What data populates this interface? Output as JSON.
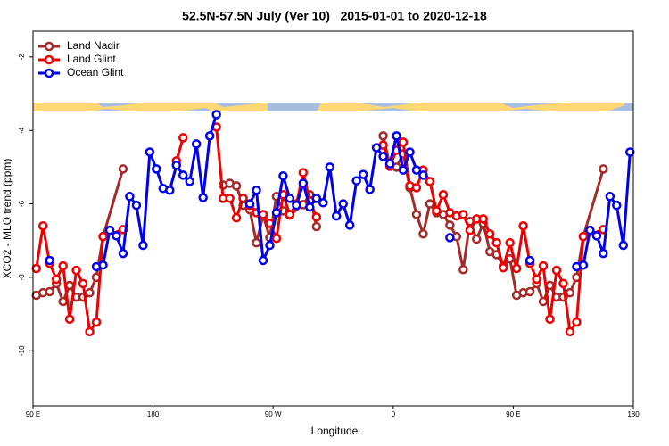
{
  "chart_data": {
    "type": "line",
    "title": "52.5N-57.5N July (Ver 10)   2015-01-01 to 2020-12-18",
    "x_label": "Longitude",
    "y_label": "XCO2 - MLO trend (ppm)",
    "xlim": [
      90,
      540
    ],
    "ylim": [
      -11.5,
      -1.3
    ],
    "xticks": [
      {
        "value": 90,
        "label": "90 E"
      },
      180,
      {
        "value": 270,
        "label": "90 W"
      },
      {
        "value": 360,
        "label": "0"
      },
      {
        "value": 450,
        "label": "90 E"
      },
      {
        "value": 540,
        "label": "180"
      }
    ],
    "yticks": [
      -2,
      -4,
      -6,
      -8,
      -10
    ],
    "legend": "upper left",
    "series": [
      {
        "name": "Land Nadir",
        "color": "#a52a2a",
        "x": [
          92.5,
          97.5,
          102.5,
          107.5,
          112.5,
          117.5,
          122.5,
          127.5,
          132.5,
          137.5,
          142.5,
          157.5,
          192.5,
          232.5,
          237.5,
          242.5,
          247.5,
          252.5,
          257.5,
          262.5,
          267.5,
          272.5,
          277.5,
          282.5,
          292.5,
          297.5,
          302.5,
          307.5,
          352.5,
          357.5,
          362.5,
          367.5,
          372.5,
          377.5,
          382.5,
          387.5,
          392.5,
          397.5,
          402.5,
          407.5,
          412.5,
          417.5,
          422.5,
          427.5,
          432.5,
          437.5,
          442.5,
          447.5,
          452.5,
          457.5,
          462.5,
          467.5,
          472.5,
          477.5,
          482.5,
          487.5,
          492.5,
          497.5,
          502.5,
          517.5
        ],
        "values": [
          -8.49,
          -8.42,
          -8.39,
          -8.17,
          -8.66,
          -8.22,
          -8.54,
          -8.54,
          -8.42,
          -8.0,
          -6.89,
          -5.05,
          null,
          -5.49,
          -5.44,
          -5.51,
          -6.04,
          -6.16,
          -7.06,
          -6.31,
          -6.92,
          -5.8,
          -6.19,
          -6.31,
          -6.02,
          -5.75,
          -6.62,
          null,
          -4.15,
          -4.95,
          -5.0,
          -4.64,
          -5.56,
          -6.29,
          -6.82,
          -6.0,
          -6.24,
          -6.29,
          -6.58,
          -6.89,
          -7.79,
          -6.48,
          -6.96,
          -6.53,
          -7.3,
          -7.38,
          -7.69,
          -7.5,
          -8.49,
          -8.42,
          -8.39,
          -8.17,
          -8.66,
          -8.22,
          -8.54,
          -8.54,
          -8.42,
          -8.0,
          -6.89,
          -5.05
        ]
      },
      {
        "name": "Land Glint",
        "color": "#ee0000",
        "x": [
          92.5,
          97.5,
          102.5,
          107.5,
          112.5,
          117.5,
          122.5,
          127.5,
          132.5,
          137.5,
          142.5,
          157.5,
          177.5,
          197.5,
          202.5,
          212.5,
          227.5,
          232.5,
          237.5,
          242.5,
          247.5,
          252.5,
          257.5,
          262.5,
          267.5,
          272.5,
          277.5,
          282.5,
          287.5,
          292.5,
          297.5,
          302.5,
          327.5,
          352.5,
          357.5,
          362.5,
          367.5,
          372.5,
          377.5,
          382.5,
          387.5,
          392.5,
          397.5,
          402.5,
          407.5,
          412.5,
          417.5,
          422.5,
          427.5,
          432.5,
          437.5,
          442.5,
          447.5,
          452.5,
          457.5,
          462.5,
          467.5,
          472.5,
          477.5,
          482.5,
          487.5,
          492.5,
          497.5,
          502.5,
          517.5
        ],
        "values": [
          -7.76,
          -6.6,
          -7.62,
          -8.05,
          -7.69,
          -9.14,
          -7.81,
          -8.17,
          -9.48,
          -9.22,
          -6.89,
          -6.7,
          null,
          -4.83,
          -4.2,
          null,
          -3.91,
          -5.85,
          -5.85,
          -6.38,
          -5.85,
          -6.04,
          -6.24,
          -6.29,
          -6.53,
          -6.94,
          -5.75,
          -6.29,
          -6.0,
          -5.15,
          -5.92,
          -6.36,
          null,
          -4.4,
          -4.98,
          -4.54,
          -4.32,
          -5.51,
          -5.56,
          -5.08,
          -5.39,
          -6.19,
          -5.75,
          -6.24,
          -6.33,
          -6.29,
          -6.72,
          -6.41,
          -6.41,
          -6.82,
          -7.06,
          -7.74,
          -7.06,
          -7.76,
          -6.6,
          -7.62,
          -8.05,
          -7.69,
          -9.14,
          -7.81,
          -8.17,
          -9.48,
          -9.22,
          -6.89,
          -6.7
        ]
      },
      {
        "name": "Ocean Glint",
        "color": "#0000ee",
        "x": [
          102.5,
          117.5,
          137.5,
          142.5,
          147.5,
          152.5,
          157.5,
          162.5,
          167.5,
          172.5,
          177.5,
          182.5,
          187.5,
          192.5,
          197.5,
          202.5,
          207.5,
          212.5,
          217.5,
          222.5,
          227.5,
          237.5,
          252.5,
          257.5,
          262.5,
          267.5,
          272.5,
          277.5,
          282.5,
          287.5,
          292.5,
          297.5,
          302.5,
          307.5,
          312.5,
          317.5,
          322.5,
          327.5,
          332.5,
          337.5,
          342.5,
          347.5,
          352.5,
          357.5,
          362.5,
          367.5,
          372.5,
          377.5,
          382.5,
          392.5,
          402.5,
          422.5,
          462.5,
          477.5,
          497.5,
          502.5,
          507.5,
          512.5,
          517.5,
          522.5,
          527.5,
          532.5,
          537.5
        ],
        "values": [
          -7.54,
          null,
          -7.71,
          -7.67,
          -6.72,
          -6.87,
          -7.35,
          -5.8,
          -6.04,
          -7.13,
          -4.59,
          -5.05,
          -5.58,
          -5.63,
          -4.95,
          -5.22,
          -5.39,
          -4.37,
          -5.83,
          -4.15,
          -3.57,
          null,
          -6.0,
          -5.63,
          -7.54,
          -7.13,
          -6.24,
          -5.24,
          -5.85,
          -6.04,
          -5.44,
          -6.09,
          -5.85,
          -5.97,
          -5.0,
          -6.33,
          -6.0,
          -6.58,
          -5.37,
          -5.2,
          -5.61,
          -4.47,
          -4.71,
          -4.91,
          -4.15,
          -5.08,
          -4.59,
          -5.08,
          -5.22,
          null,
          -6.92,
          null,
          -7.54,
          null,
          -7.71,
          -7.67,
          -6.72,
          -6.87,
          -7.35,
          -5.8,
          -6.04,
          -7.13,
          -4.59
        ]
      }
    ]
  }
}
